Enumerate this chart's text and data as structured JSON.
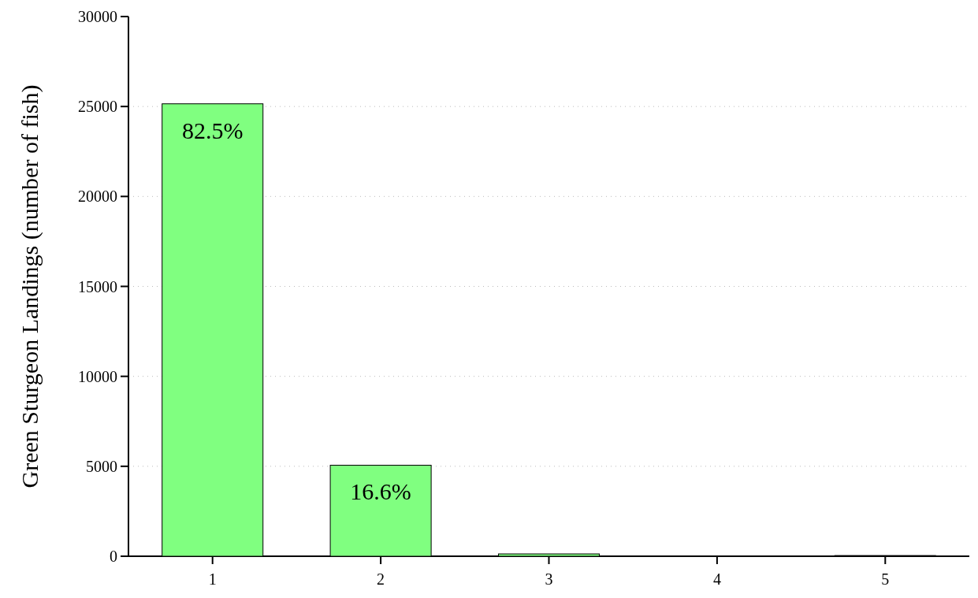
{
  "chart_data": {
    "type": "bar",
    "ylabel": "Green Sturgeon Landings (number of fish)",
    "categories": [
      "1",
      "2",
      "3",
      "4",
      "5"
    ],
    "values": [
      25150,
      5060,
      130,
      null,
      40
    ],
    "color": "#80ff80",
    "annotations": [
      {
        "text": "82.5%",
        "x": "1",
        "y": 25150
      },
      {
        "text": "16.6%",
        "x": "2",
        "y": 5060
      }
    ],
    "ylim": [
      0,
      30000
    ],
    "yticks": [
      0,
      5000,
      10000,
      15000,
      20000,
      25000,
      30000
    ],
    "grid": "y"
  }
}
